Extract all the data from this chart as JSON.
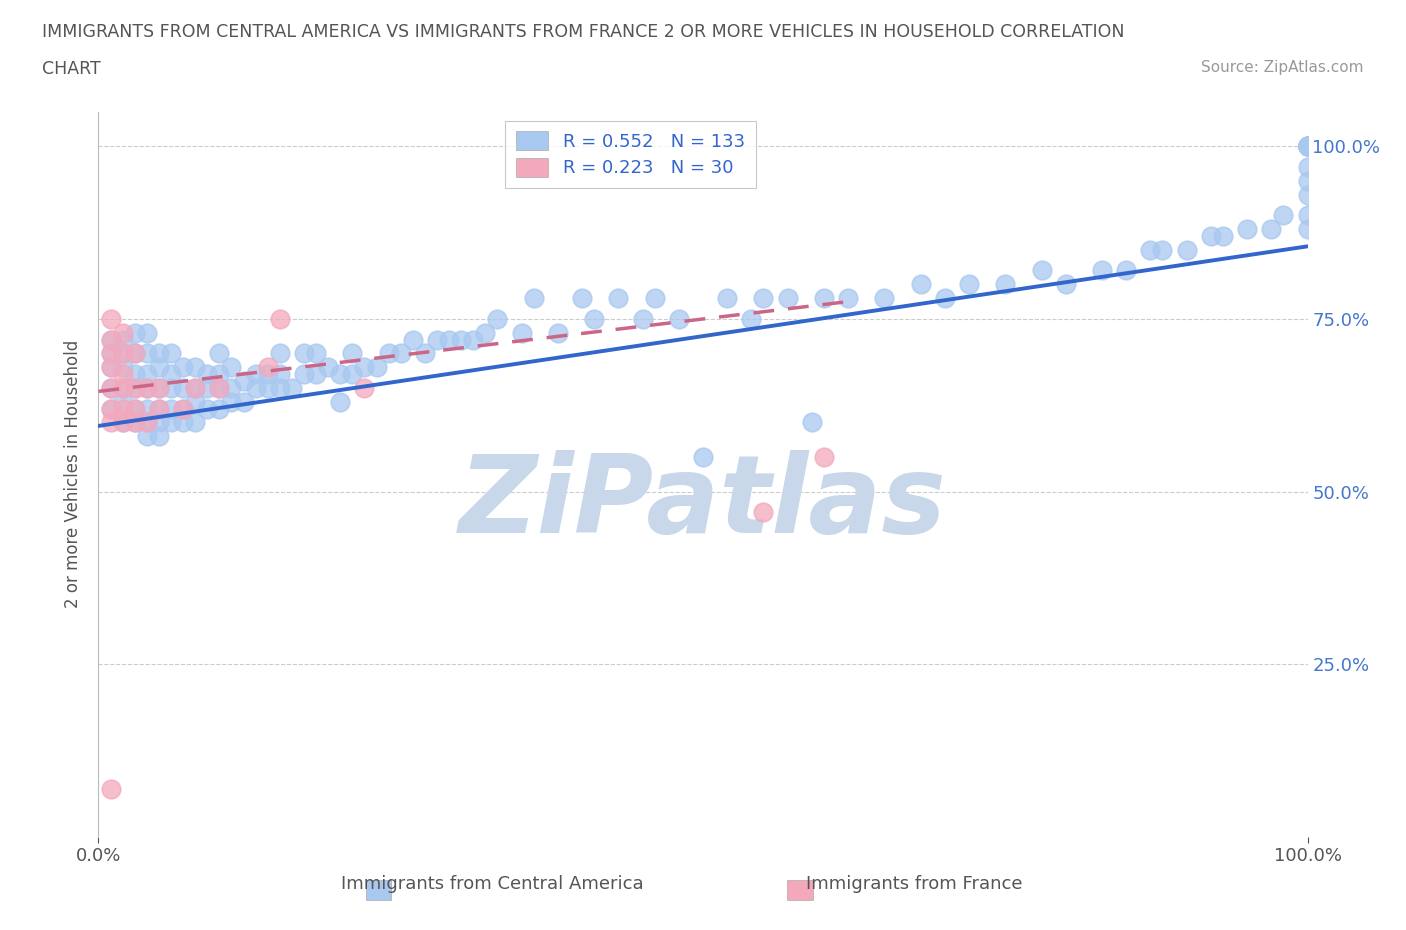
{
  "title_line1": "IMMIGRANTS FROM CENTRAL AMERICA VS IMMIGRANTS FROM FRANCE 2 OR MORE VEHICLES IN HOUSEHOLD CORRELATION",
  "title_line2": "CHART",
  "source_text": "Source: ZipAtlas.com",
  "xlabel_blue": "Immigrants from Central America",
  "xlabel_pink": "Immigrants from France",
  "ylabel": "2 or more Vehicles in Household",
  "xlim": [
    0.0,
    1.0
  ],
  "ylim": [
    0.0,
    1.05
  ],
  "ytick_vals": [
    0.25,
    0.5,
    0.75,
    1.0
  ],
  "ytick_labels_right": [
    "25.0%",
    "50.0%",
    "75.0%",
    "100.0%"
  ],
  "R_blue": 0.552,
  "N_blue": 133,
  "R_pink": 0.223,
  "N_pink": 30,
  "blue_color": "#A8C8F0",
  "pink_color": "#F4A8BC",
  "blue_line_color": "#3366CC",
  "pink_line_color": "#CC6688",
  "watermark": "ZiPatlas",
  "watermark_color": "#C8D8EA",
  "title_color": "#555555",
  "legend_label_color": "#3366CC",
  "blue_x": [
    0.01,
    0.01,
    0.01,
    0.01,
    0.01,
    0.02,
    0.02,
    0.02,
    0.02,
    0.02,
    0.02,
    0.03,
    0.03,
    0.03,
    0.03,
    0.03,
    0.03,
    0.04,
    0.04,
    0.04,
    0.04,
    0.04,
    0.04,
    0.04,
    0.05,
    0.05,
    0.05,
    0.05,
    0.05,
    0.05,
    0.06,
    0.06,
    0.06,
    0.06,
    0.06,
    0.07,
    0.07,
    0.07,
    0.07,
    0.08,
    0.08,
    0.08,
    0.08,
    0.09,
    0.09,
    0.09,
    0.1,
    0.1,
    0.1,
    0.1,
    0.11,
    0.11,
    0.11,
    0.12,
    0.12,
    0.13,
    0.13,
    0.14,
    0.14,
    0.15,
    0.15,
    0.15,
    0.16,
    0.17,
    0.17,
    0.18,
    0.18,
    0.19,
    0.2,
    0.2,
    0.21,
    0.21,
    0.22,
    0.23,
    0.24,
    0.25,
    0.26,
    0.27,
    0.28,
    0.29,
    0.3,
    0.31,
    0.32,
    0.33,
    0.35,
    0.36,
    0.38,
    0.4,
    0.41,
    0.43,
    0.45,
    0.46,
    0.48,
    0.5,
    0.52,
    0.54,
    0.55,
    0.57,
    0.59,
    0.6,
    0.62,
    0.65,
    0.68,
    0.7,
    0.72,
    0.75,
    0.78,
    0.8,
    0.83,
    0.85,
    0.87,
    0.88,
    0.9,
    0.92,
    0.93,
    0.95,
    0.97,
    0.98,
    1.0,
    1.0,
    1.0,
    1.0,
    1.0,
    1.0,
    1.0,
    1.0,
    1.0,
    1.0,
    1.0,
    1.0,
    1.0,
    1.0,
    1.0
  ],
  "blue_y": [
    0.62,
    0.65,
    0.68,
    0.7,
    0.72,
    0.6,
    0.63,
    0.65,
    0.68,
    0.7,
    0.72,
    0.6,
    0.62,
    0.65,
    0.67,
    0.7,
    0.73,
    0.58,
    0.6,
    0.62,
    0.65,
    0.67,
    0.7,
    0.73,
    0.58,
    0.6,
    0.62,
    0.65,
    0.68,
    0.7,
    0.6,
    0.62,
    0.65,
    0.67,
    0.7,
    0.6,
    0.62,
    0.65,
    0.68,
    0.6,
    0.63,
    0.65,
    0.68,
    0.62,
    0.65,
    0.67,
    0.62,
    0.65,
    0.67,
    0.7,
    0.63,
    0.65,
    0.68,
    0.63,
    0.66,
    0.65,
    0.67,
    0.65,
    0.67,
    0.65,
    0.67,
    0.7,
    0.65,
    0.67,
    0.7,
    0.67,
    0.7,
    0.68,
    0.63,
    0.67,
    0.67,
    0.7,
    0.68,
    0.68,
    0.7,
    0.7,
    0.72,
    0.7,
    0.72,
    0.72,
    0.72,
    0.72,
    0.73,
    0.75,
    0.73,
    0.78,
    0.73,
    0.78,
    0.75,
    0.78,
    0.75,
    0.78,
    0.75,
    0.55,
    0.78,
    0.75,
    0.78,
    0.78,
    0.6,
    0.78,
    0.78,
    0.78,
    0.8,
    0.78,
    0.8,
    0.8,
    0.82,
    0.8,
    0.82,
    0.82,
    0.85,
    0.85,
    0.85,
    0.87,
    0.87,
    0.88,
    0.88,
    0.9,
    0.88,
    0.9,
    0.93,
    0.95,
    0.97,
    1.0,
    1.0,
    1.0,
    1.0,
    1.0,
    1.0,
    1.0,
    1.0,
    1.0,
    1.0
  ],
  "pink_x": [
    0.01,
    0.01,
    0.01,
    0.01,
    0.01,
    0.01,
    0.01,
    0.02,
    0.02,
    0.02,
    0.02,
    0.02,
    0.02,
    0.03,
    0.03,
    0.03,
    0.03,
    0.04,
    0.04,
    0.05,
    0.05,
    0.07,
    0.08,
    0.1,
    0.14,
    0.15,
    0.22,
    0.55,
    0.6,
    0.01
  ],
  "pink_y": [
    0.6,
    0.62,
    0.65,
    0.68,
    0.7,
    0.72,
    0.75,
    0.6,
    0.62,
    0.65,
    0.67,
    0.7,
    0.73,
    0.6,
    0.62,
    0.65,
    0.7,
    0.6,
    0.65,
    0.62,
    0.65,
    0.62,
    0.65,
    0.65,
    0.68,
    0.75,
    0.65,
    0.47,
    0.55,
    0.07
  ],
  "blue_trend_x": [
    0.0,
    1.0
  ],
  "blue_trend_y_start": 0.595,
  "blue_trend_y_end": 0.855,
  "pink_trend_x": [
    0.0,
    0.62
  ],
  "pink_trend_y_start": 0.645,
  "pink_trend_y_end": 0.775
}
